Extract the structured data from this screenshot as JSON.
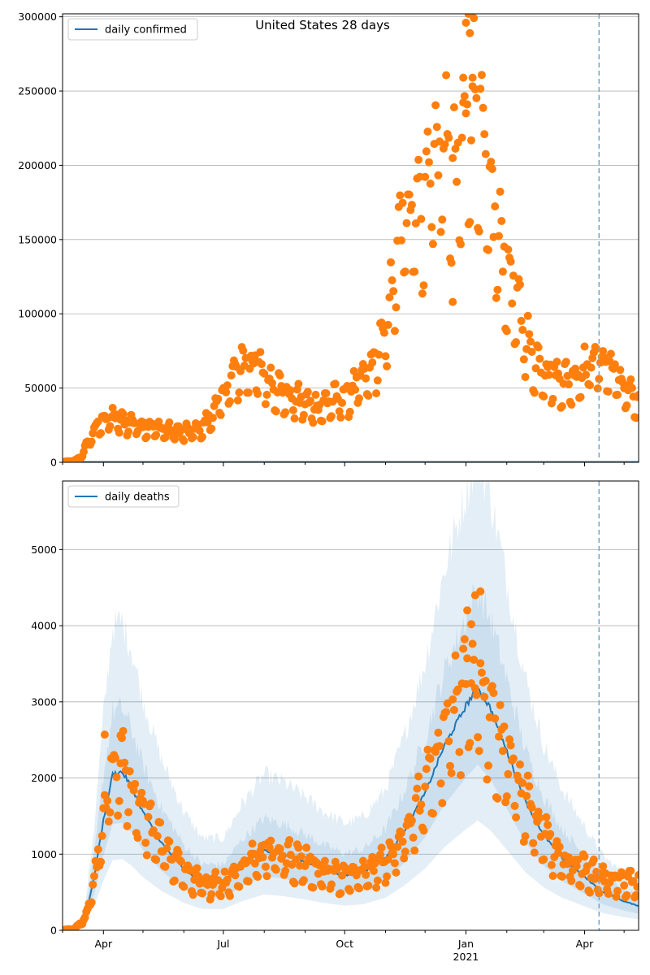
{
  "figure": {
    "title": "United States 28 days"
  },
  "chart_data": [
    {
      "type": "scatter",
      "legend": "daily confirmed",
      "legend_placement": "top-left",
      "grid": "y-major",
      "ylim": [
        0,
        302000
      ],
      "yticks": [
        0,
        50000,
        100000,
        150000,
        200000,
        250000,
        300000
      ],
      "xlim": [
        "2020-03-01",
        "2021-05-12"
      ],
      "cutoff_date": "2021-04-12",
      "model_line": {
        "name": "daily confirmed",
        "values": "zero"
      },
      "observed_anchors": [
        [
          "2020-03-01",
          200
        ],
        [
          "2020-03-10",
          1000
        ],
        [
          "2020-03-15",
          4000
        ],
        [
          "2020-03-20",
          13000
        ],
        [
          "2020-03-25",
          22000
        ],
        [
          "2020-04-01",
          30000
        ],
        [
          "2020-04-08",
          31000
        ],
        [
          "2020-04-15",
          28000
        ],
        [
          "2020-04-25",
          27000
        ],
        [
          "2020-05-05",
          25000
        ],
        [
          "2020-05-15",
          23000
        ],
        [
          "2020-05-25",
          21000
        ],
        [
          "2020-06-05",
          21000
        ],
        [
          "2020-06-15",
          24000
        ],
        [
          "2020-06-22",
          32000
        ],
        [
          "2020-06-30",
          45000
        ],
        [
          "2020-07-08",
          58000
        ],
        [
          "2020-07-16",
          68000
        ],
        [
          "2020-07-24",
          66000
        ],
        [
          "2020-08-01",
          60000
        ],
        [
          "2020-08-10",
          52000
        ],
        [
          "2020-08-20",
          45000
        ],
        [
          "2020-09-01",
          41000
        ],
        [
          "2020-09-10",
          38000
        ],
        [
          "2020-09-20",
          42000
        ],
        [
          "2020-10-01",
          45000
        ],
        [
          "2020-10-10",
          52000
        ],
        [
          "2020-10-20",
          62000
        ],
        [
          "2020-10-30",
          82000
        ],
        [
          "2020-11-06",
          115000
        ],
        [
          "2020-11-13",
          160000
        ],
        [
          "2020-11-20",
          180000
        ],
        [
          "2020-11-30",
          175000
        ],
        [
          "2020-12-05",
          205000
        ],
        [
          "2020-12-15",
          215000
        ],
        [
          "2020-12-25",
          190000
        ],
        [
          "2021-01-02",
          230000
        ],
        [
          "2021-01-09",
          255000
        ],
        [
          "2021-01-15",
          200000
        ],
        [
          "2021-01-22",
          165000
        ],
        [
          "2021-01-30",
          140000
        ],
        [
          "2021-02-06",
          115000
        ],
        [
          "2021-02-13",
          95000
        ],
        [
          "2021-02-20",
          72000
        ],
        [
          "2021-03-01",
          65000
        ],
        [
          "2021-03-10",
          58000
        ],
        [
          "2021-03-20",
          56000
        ],
        [
          "2021-04-01",
          64000
        ],
        [
          "2021-04-10",
          72000
        ],
        [
          "2021-04-20",
          66000
        ],
        [
          "2021-05-01",
          52000
        ],
        [
          "2021-05-12",
          40000
        ]
      ],
      "peak_points": [
        [
          "2021-01-01",
          296000
        ],
        [
          "2021-01-03",
          302000
        ],
        [
          "2021-01-04",
          289000
        ],
        [
          "2020-12-30",
          259000
        ],
        [
          "2021-01-06",
          259000
        ],
        [
          "2020-12-22",
          108000
        ]
      ]
    },
    {
      "type": "line",
      "legend": "daily deaths",
      "legend_placement": "top-left",
      "grid": "y-major",
      "ylim": [
        0,
        5900
      ],
      "yticks": [
        0,
        1000,
        2000,
        3000,
        4000,
        5000
      ],
      "xlim": [
        "2020-03-01",
        "2021-05-12"
      ],
      "xticks": [
        "Apr",
        "Jul",
        "Oct",
        "Jan",
        "Apr"
      ],
      "xtick_dates": [
        "2020-04-01",
        "2020-07-01",
        "2020-10-01",
        "2021-01-01",
        "2021-04-01"
      ],
      "year_label": "2021",
      "cutoff_date": "2021-04-12",
      "model_line": [
        [
          "2020-03-01",
          5
        ],
        [
          "2020-03-10",
          20
        ],
        [
          "2020-03-18",
          150
        ],
        [
          "2020-03-25",
          700
        ],
        [
          "2020-04-01",
          1450
        ],
        [
          "2020-04-08",
          2050
        ],
        [
          "2020-04-15",
          2080
        ],
        [
          "2020-04-22",
          1900
        ],
        [
          "2020-05-01",
          1550
        ],
        [
          "2020-05-15",
          1150
        ],
        [
          "2020-06-01",
          800
        ],
        [
          "2020-06-15",
          620
        ],
        [
          "2020-07-01",
          620
        ],
        [
          "2020-07-15",
          850
        ],
        [
          "2020-08-01",
          1050
        ],
        [
          "2020-08-15",
          1000
        ],
        [
          "2020-09-01",
          900
        ],
        [
          "2020-09-15",
          800
        ],
        [
          "2020-10-01",
          720
        ],
        [
          "2020-10-15",
          760
        ],
        [
          "2020-11-01",
          950
        ],
        [
          "2020-11-15",
          1300
        ],
        [
          "2020-12-01",
          1800
        ],
        [
          "2020-12-15",
          2400
        ],
        [
          "2021-01-01",
          2950
        ],
        [
          "2021-01-10",
          3200
        ],
        [
          "2021-01-20",
          2900
        ],
        [
          "2021-02-01",
          2350
        ],
        [
          "2021-02-15",
          1700
        ],
        [
          "2021-03-01",
          1250
        ],
        [
          "2021-03-15",
          950
        ],
        [
          "2021-04-01",
          700
        ],
        [
          "2021-04-15",
          500
        ],
        [
          "2021-05-01",
          380
        ],
        [
          "2021-05-12",
          320
        ]
      ],
      "band_outer_ratio": [
        0.45,
        1.95
      ],
      "band_inner_ratio": [
        0.68,
        1.4
      ],
      "observed_anchors": [
        [
          "2020-03-01",
          5
        ],
        [
          "2020-03-10",
          20
        ],
        [
          "2020-03-18",
          150
        ],
        [
          "2020-03-25",
          700
        ],
        [
          "2020-04-01",
          1500
        ],
        [
          "2020-04-08",
          2150
        ],
        [
          "2020-04-15",
          2150
        ],
        [
          "2020-04-22",
          1900
        ],
        [
          "2020-05-01",
          1550
        ],
        [
          "2020-05-15",
          1150
        ],
        [
          "2020-06-01",
          800
        ],
        [
          "2020-06-15",
          620
        ],
        [
          "2020-07-01",
          620
        ],
        [
          "2020-07-15",
          850
        ],
        [
          "2020-08-01",
          1050
        ],
        [
          "2020-08-15",
          1000
        ],
        [
          "2020-09-01",
          900
        ],
        [
          "2020-09-15",
          800
        ],
        [
          "2020-10-01",
          720
        ],
        [
          "2020-10-15",
          760
        ],
        [
          "2020-11-01",
          950
        ],
        [
          "2020-11-15",
          1300
        ],
        [
          "2020-12-01",
          1900
        ],
        [
          "2020-12-15",
          2600
        ],
        [
          "2021-01-01",
          3200
        ],
        [
          "2021-01-10",
          3400
        ],
        [
          "2021-01-20",
          2900
        ],
        [
          "2021-02-01",
          2350
        ],
        [
          "2021-02-15",
          1700
        ],
        [
          "2021-03-01",
          1250
        ],
        [
          "2021-03-15",
          950
        ],
        [
          "2021-04-01",
          800
        ],
        [
          "2021-04-15",
          700
        ],
        [
          "2021-05-01",
          650
        ],
        [
          "2021-05-12",
          620
        ]
      ],
      "peak_points": [
        [
          "2021-01-12",
          4450
        ],
        [
          "2021-01-08",
          4400
        ],
        [
          "2021-01-02",
          4200
        ],
        [
          "2021-01-05",
          4020
        ],
        [
          "2020-04-02",
          2570
        ],
        [
          "2020-04-14",
          2560
        ]
      ]
    }
  ],
  "colors": {
    "series_line": "#1f77b4",
    "observed_points": "#ff7f0e",
    "band": "#1f77b4",
    "cutoff_line": "#79a9cc",
    "grid": "#b0b0b0",
    "axes": "#000000"
  }
}
